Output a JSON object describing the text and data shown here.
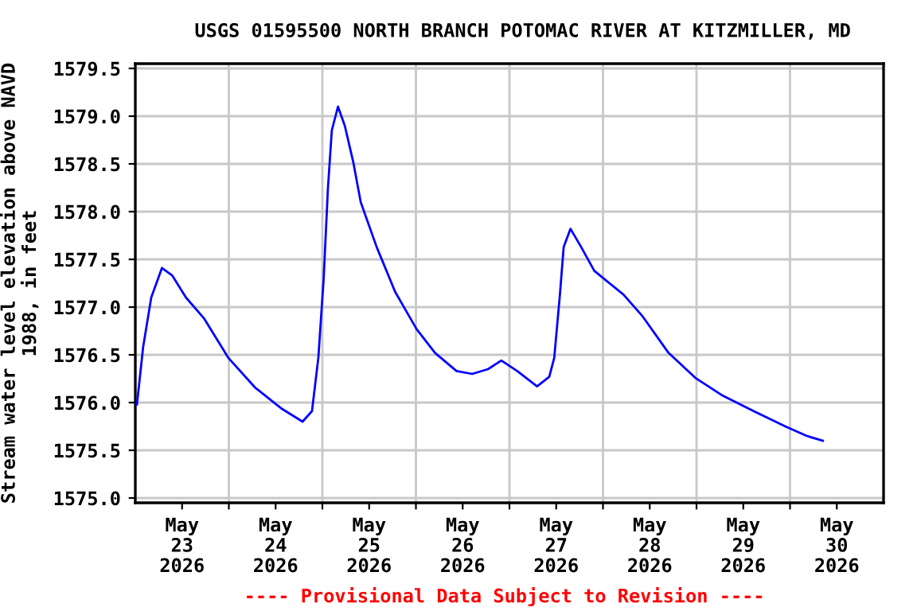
{
  "chart_data": {
    "type": "line",
    "title": "USGS 01595500 NORTH BRANCH POTOMAC RIVER AT KITZMILLER, MD",
    "ylabel": "Stream water level elevation above NAVD\n1988, in feet",
    "annotations": [
      "---- Provisional Data Subject to Revision ----"
    ],
    "x": [
      "2026-05-23T00:25",
      "2026-05-23T02:00",
      "2026-05-23T04:05",
      "2026-05-23T06:50",
      "2026-05-23T09:30",
      "2026-05-23T13:00",
      "2026-05-23T17:40",
      "2026-05-23T23:50",
      "2026-05-24T06:40",
      "2026-05-24T13:25",
      "2026-05-24T18:55",
      "2026-05-24T21:20",
      "2026-05-24T22:58",
      "2026-05-25T00:20",
      "2026-05-25T01:25",
      "2026-05-25T02:25",
      "2026-05-25T04:00",
      "2026-05-25T05:45",
      "2026-05-25T07:55",
      "2026-05-25T09:50",
      "2026-05-25T13:55",
      "2026-05-25T18:40",
      "2026-05-26T00:10",
      "2026-05-26T04:55",
      "2026-05-26T10:25",
      "2026-05-26T14:25",
      "2026-05-26T18:30",
      "2026-05-26T21:55",
      "2026-05-27T02:00",
      "2026-05-27T07:05",
      "2026-05-27T10:13",
      "2026-05-27T11:30",
      "2026-05-27T12:57",
      "2026-05-27T13:55",
      "2026-05-27T15:40",
      "2026-05-27T18:23",
      "2026-05-27T21:46",
      "2026-05-28T05:17",
      "2026-05-28T10:02",
      "2026-05-28T16:50",
      "2026-05-28T23:40",
      "2026-05-29T06:25",
      "2026-05-29T14:40",
      "2026-05-29T22:48",
      "2026-05-30T04:20",
      "2026-05-30T08:25"
    ],
    "series": [
      {
        "color": "#0000ff",
        "values": [
          1575.98,
          1576.58,
          1577.1,
          1577.41,
          1577.33,
          1577.1,
          1576.88,
          1576.47,
          1576.16,
          1575.94,
          1575.8,
          1575.91,
          1576.47,
          1577.3,
          1578.24,
          1578.85,
          1579.1,
          1578.9,
          1578.52,
          1578.1,
          1577.63,
          1577.16,
          1576.77,
          1576.52,
          1576.33,
          1576.3,
          1576.35,
          1576.44,
          1576.33,
          1576.17,
          1576.27,
          1576.47,
          1577.13,
          1577.63,
          1577.82,
          1577.63,
          1577.38,
          1577.13,
          1576.91,
          1576.52,
          1576.26,
          1576.08,
          1575.91,
          1575.75,
          1575.65,
          1575.6
        ]
      }
    ],
    "xlim": [
      "2026-05-23T00:00",
      "2026-05-31T00:00"
    ],
    "xticks": [
      {
        "value": "2026-05-24T00:00",
        "label": null
      },
      {
        "value": "2026-05-25T00:00",
        "label": null
      },
      {
        "value": "2026-05-26T00:00",
        "label": null
      },
      {
        "value": "2026-05-27T00:00",
        "label": null
      },
      {
        "value": "2026-05-28T00:00",
        "label": null
      },
      {
        "value": "2026-05-29T00:00",
        "label": null
      },
      {
        "value": "2026-05-30T00:00",
        "label": null
      },
      {
        "value": "2026-05-23T12:00",
        "label": "May\n23\n2026"
      },
      {
        "value": "2026-05-24T12:00",
        "label": "May\n24\n2026"
      },
      {
        "value": "2026-05-25T12:00",
        "label": "May\n25\n2026"
      },
      {
        "value": "2026-05-26T12:00",
        "label": "May\n26\n2026"
      },
      {
        "value": "2026-05-27T12:00",
        "label": "May\n27\n2026"
      },
      {
        "value": "2026-05-28T12:00",
        "label": "May\n28\n2026"
      },
      {
        "value": "2026-05-29T12:00",
        "label": "May\n29\n2026"
      },
      {
        "value": "2026-05-30T12:00",
        "label": "May\n30\n2026"
      }
    ],
    "ylim": [
      1574.95,
      1579.55
    ],
    "yticks": [
      {
        "value": 1575.0,
        "label": "1575.0"
      },
      {
        "value": 1575.5,
        "label": "1575.5"
      },
      {
        "value": 1576.0,
        "label": "1576.0"
      },
      {
        "value": 1576.5,
        "label": "1576.5"
      },
      {
        "value": 1577.0,
        "label": "1577.0"
      },
      {
        "value": 1577.5,
        "label": "1577.5"
      },
      {
        "value": 1578.0,
        "label": "1578.0"
      },
      {
        "value": 1578.5,
        "label": "1578.5"
      },
      {
        "value": 1579.0,
        "label": "1579.0"
      },
      {
        "value": 1579.5,
        "label": "1579.5"
      }
    ],
    "grid": true,
    "legend": false
  }
}
